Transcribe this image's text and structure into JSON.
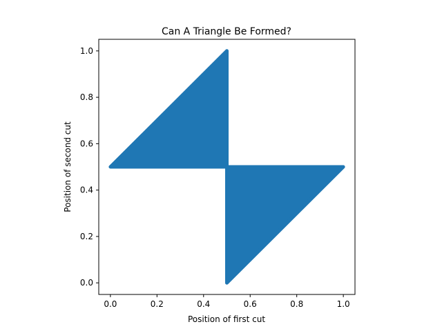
{
  "chart_data": {
    "type": "scatter",
    "title": "Can A Triangle Be Formed?",
    "xlabel": "Position of first cut",
    "ylabel": "Position of second cut",
    "xlim": [
      -0.05,
      1.05
    ],
    "ylim": [
      -0.05,
      1.05
    ],
    "xticks": [
      {
        "value": 0.0,
        "label": "0.0"
      },
      {
        "value": 0.2,
        "label": "0.2"
      },
      {
        "value": 0.4,
        "label": "0.4"
      },
      {
        "value": 0.6,
        "label": "0.6"
      },
      {
        "value": 0.8,
        "label": "0.8"
      },
      {
        "value": 1.0,
        "label": "1.0"
      }
    ],
    "yticks": [
      {
        "value": 0.0,
        "label": "0.0"
      },
      {
        "value": 0.2,
        "label": "0.2"
      },
      {
        "value": 0.4,
        "label": "0.4"
      },
      {
        "value": 0.6,
        "label": "0.6"
      },
      {
        "value": 0.8,
        "label": "0.8"
      },
      {
        "value": 1.0,
        "label": "1.0"
      }
    ],
    "grid": false,
    "legend": "none",
    "color": "#1f77b4",
    "regions": [
      {
        "vertices": [
          [
            0.0,
            0.5
          ],
          [
            0.5,
            1.0
          ],
          [
            0.5,
            0.5
          ]
        ]
      },
      {
        "vertices": [
          [
            0.5,
            0.0
          ],
          [
            0.5,
            0.5
          ],
          [
            1.0,
            0.5
          ]
        ]
      }
    ]
  }
}
